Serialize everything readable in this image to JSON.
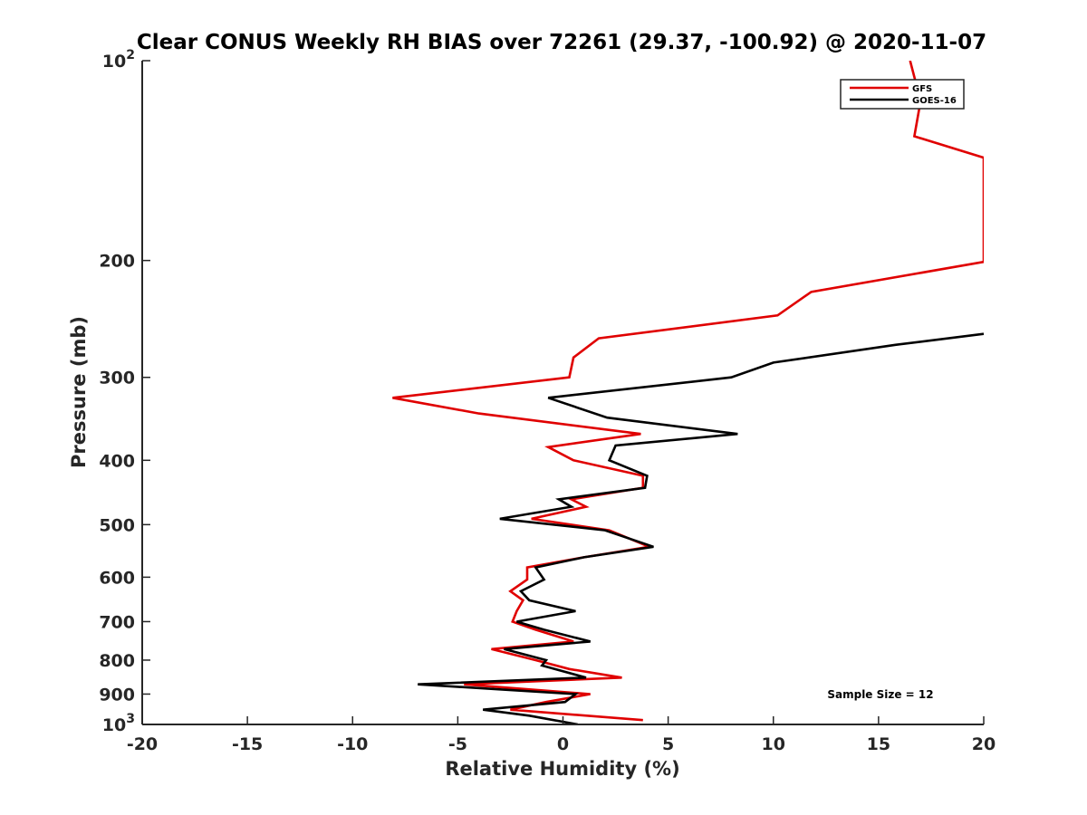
{
  "chart_data": {
    "type": "line",
    "title": "Clear CONUS Weekly RH BIAS over 72261 (29.37, -100.92) @ 2020-11-07",
    "xlabel": "Relative Humidity (%)",
    "ylabel": "Pressure (mb)",
    "xlim": [
      -20,
      20
    ],
    "ylim": [
      100,
      1000
    ],
    "y_scale": "log",
    "y_reversed": true,
    "grid": false,
    "legend_position": "top-right",
    "x_ticks": [
      -20,
      -15,
      -10,
      -5,
      0,
      5,
      10,
      15,
      20
    ],
    "x_tick_labels": [
      "-20",
      "-15",
      "-10",
      "-5",
      "0",
      "5",
      "10",
      "15",
      "20"
    ],
    "y_ticks": [
      100,
      200,
      300,
      400,
      500,
      600,
      700,
      800,
      900,
      1000
    ],
    "y_tick_labels": [
      {
        "base": "10",
        "sup": "2"
      },
      {
        "base": "200",
        "sup": ""
      },
      {
        "base": "300",
        "sup": ""
      },
      {
        "base": "400",
        "sup": ""
      },
      {
        "base": "500",
        "sup": ""
      },
      {
        "base": "600",
        "sup": ""
      },
      {
        "base": "700",
        "sup": ""
      },
      {
        "base": "800",
        "sup": ""
      },
      {
        "base": "900",
        "sup": ""
      },
      {
        "base": "10",
        "sup": "3"
      }
    ],
    "annotation": "Sample Size = 12",
    "series": [
      {
        "name": "GFS",
        "color": "#e00000",
        "points": [
          [
            16.5,
            100
          ],
          [
            17,
            115
          ],
          [
            16.7,
            130
          ],
          [
            20,
            140
          ],
          [
            20,
            201
          ],
          [
            11.8,
            223
          ],
          [
            10.2,
            242
          ],
          [
            1.7,
            262
          ],
          [
            0.5,
            280
          ],
          [
            0.3,
            300
          ],
          [
            -8.1,
            322
          ],
          [
            -4,
            340
          ],
          [
            3.7,
            365
          ],
          [
            -0.7,
            382
          ],
          [
            0.5,
            400
          ],
          [
            3.8,
            422
          ],
          [
            3.8,
            440
          ],
          [
            0.4,
            458
          ],
          [
            1.1,
            470
          ],
          [
            -1.5,
            490
          ],
          [
            2.2,
            510
          ],
          [
            4.1,
            540
          ],
          [
            1,
            560
          ],
          [
            -1.7,
            580
          ],
          [
            -1.7,
            605
          ],
          [
            -2.5,
            630
          ],
          [
            -1.9,
            650
          ],
          [
            -2.2,
            675
          ],
          [
            -2.4,
            700
          ],
          [
            -1.3,
            720
          ],
          [
            0.5,
            750
          ],
          [
            -3.4,
            770
          ],
          [
            -1.3,
            800
          ],
          [
            0.3,
            825
          ],
          [
            2.8,
            850
          ],
          [
            -4.7,
            870
          ],
          [
            1.3,
            900
          ],
          [
            -0.8,
            925
          ],
          [
            -2.5,
            950
          ],
          [
            3.8,
            985
          ]
        ]
      },
      {
        "name": "GOES-16",
        "color": "#000000",
        "points": [
          [
            20,
            258
          ],
          [
            15.8,
            268
          ],
          [
            10,
            285
          ],
          [
            8,
            300
          ],
          [
            -0.7,
            322
          ],
          [
            2.1,
            345
          ],
          [
            8.3,
            365
          ],
          [
            2.5,
            380
          ],
          [
            2.2,
            400
          ],
          [
            4,
            422
          ],
          [
            3.9,
            440
          ],
          [
            -0.2,
            458
          ],
          [
            0.4,
            470
          ],
          [
            -3,
            490
          ],
          [
            2,
            510
          ],
          [
            4.3,
            540
          ],
          [
            1,
            560
          ],
          [
            -1.3,
            580
          ],
          [
            -0.9,
            605
          ],
          [
            -2,
            630
          ],
          [
            -1.6,
            650
          ],
          [
            0.6,
            675
          ],
          [
            -2.2,
            700
          ],
          [
            -0.9,
            720
          ],
          [
            1.3,
            750
          ],
          [
            -2.8,
            770
          ],
          [
            -0.8,
            800
          ],
          [
            -1,
            815
          ],
          [
            1.1,
            850
          ],
          [
            -6.9,
            870
          ],
          [
            0.6,
            900
          ],
          [
            0.1,
            925
          ],
          [
            -3.8,
            950
          ],
          [
            -1.6,
            970
          ],
          [
            0.7,
            1000
          ]
        ]
      }
    ]
  }
}
